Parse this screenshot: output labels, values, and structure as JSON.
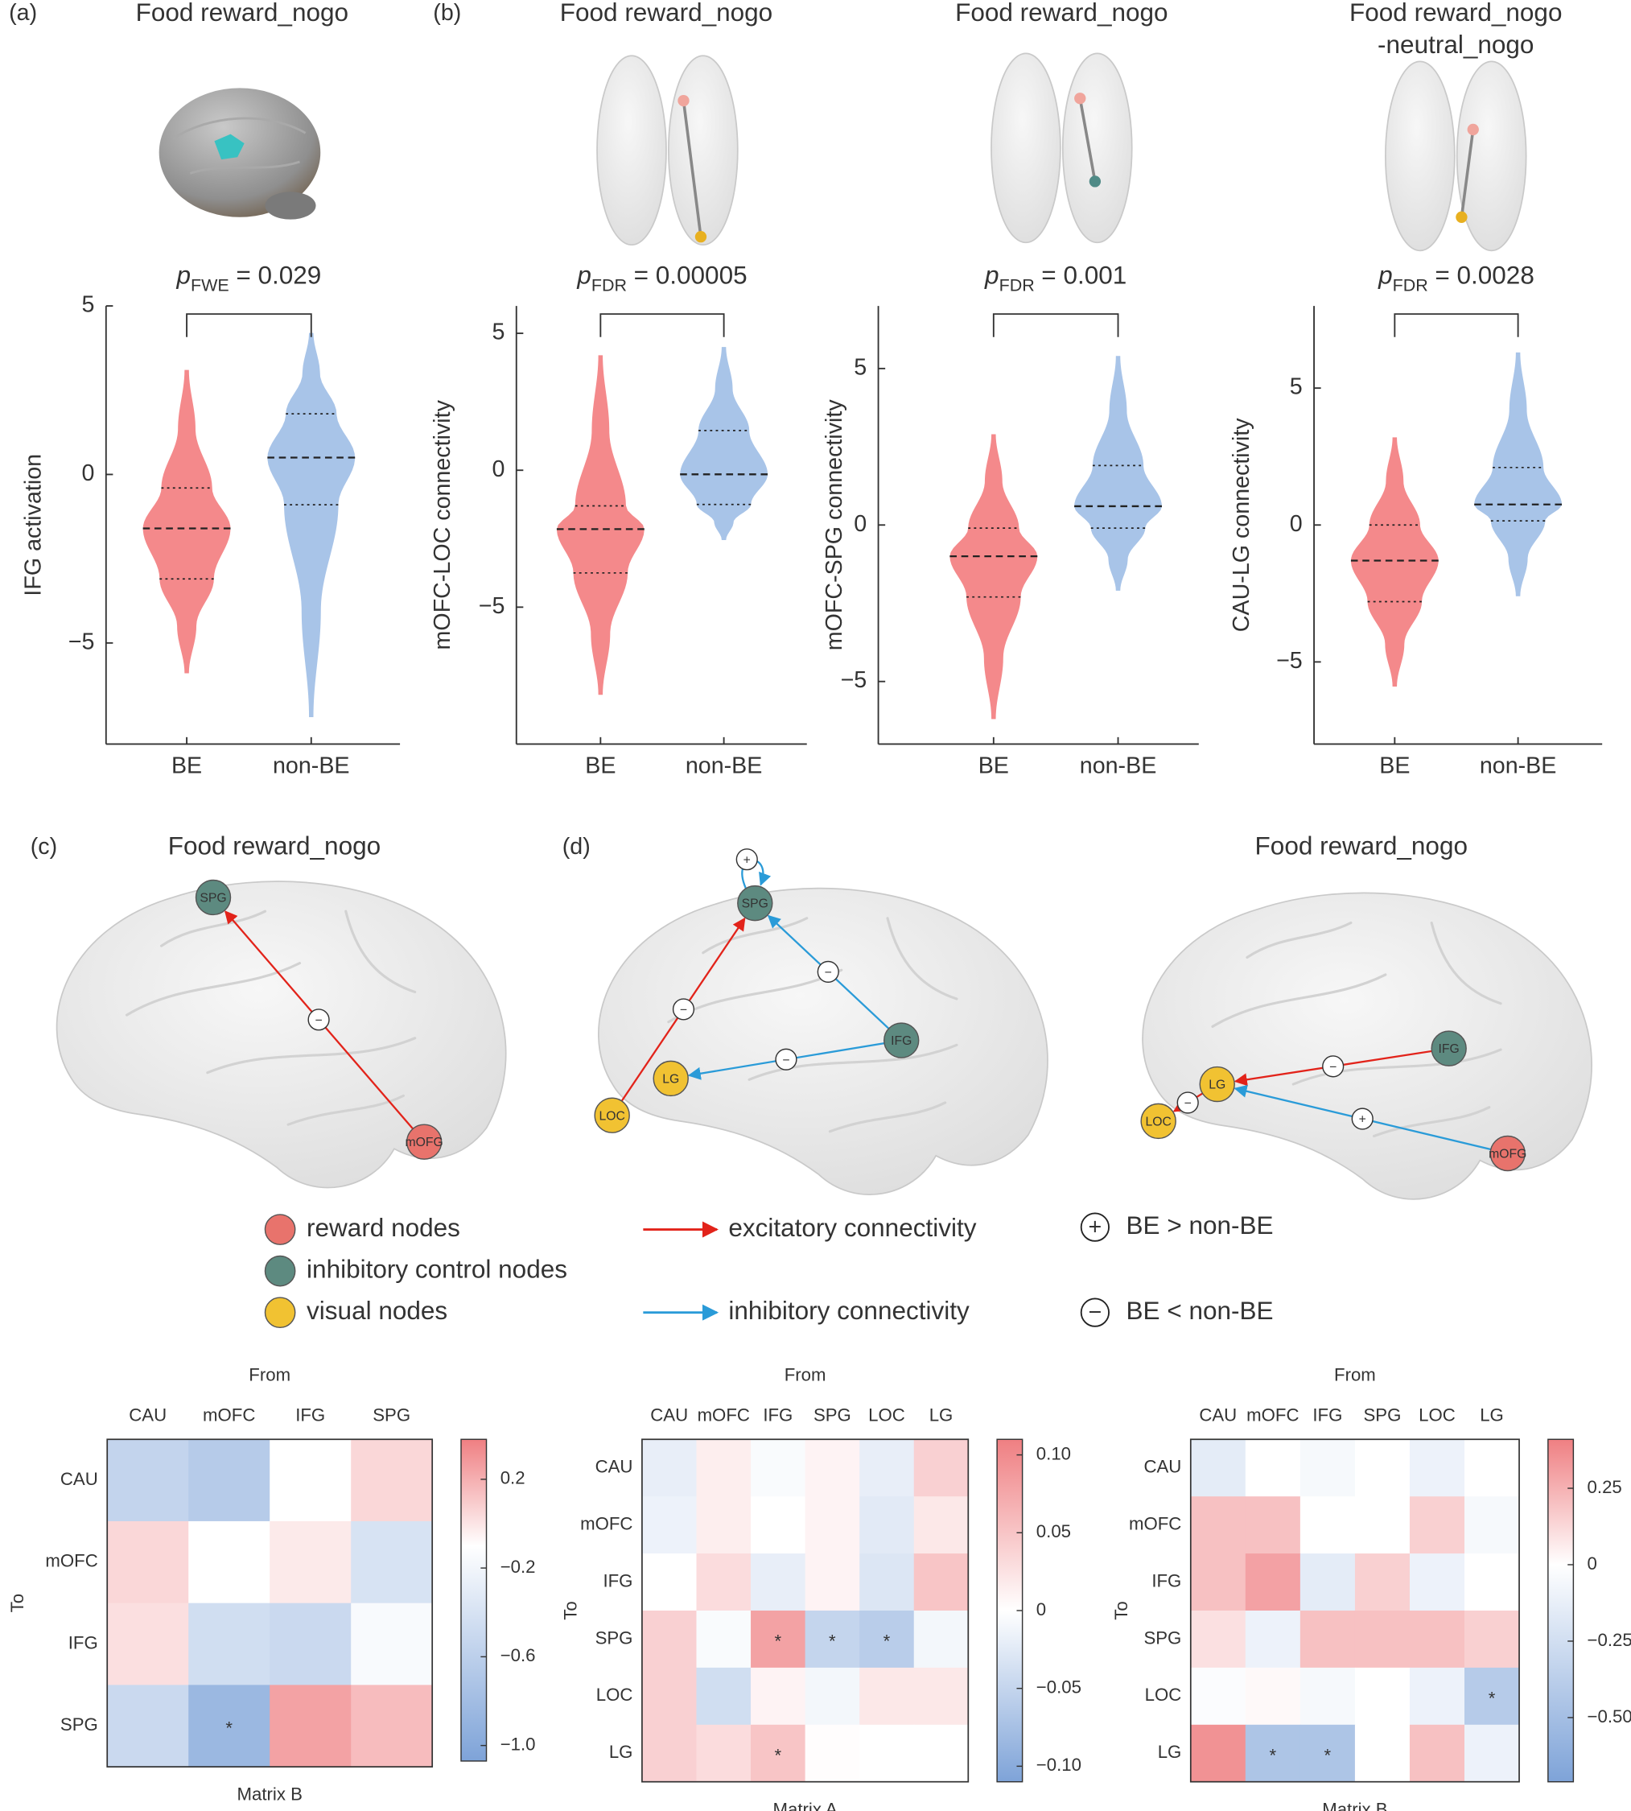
{
  "figure": {
    "panel_labels": [
      "(a)",
      "(b)",
      "(c)",
      "(d)"
    ]
  },
  "chart_data": [
    {
      "type": "violin",
      "title": [
        "Food reward_nogo"
      ],
      "ylabel": "IFG activation",
      "categories": [
        "BE",
        "non-BE"
      ],
      "colors": [
        "#f4898b",
        "#a8c4e8"
      ],
      "stats": [
        {
          "min": -5.9,
          "q1": -3.1,
          "median": -1.6,
          "q3": -0.4,
          "max": 3.1
        },
        {
          "min": -7.2,
          "q1": -0.9,
          "median": 0.5,
          "q3": 1.8,
          "max": 4.2
        }
      ],
      "ylim": [
        -8,
        5
      ],
      "yticks": [
        5,
        0,
        {
          "value": -5,
          "label": "−5"
        }
      ],
      "p_symbol": "p",
      "p_subscript": "FWE",
      "p_text": "= 0.029"
    },
    {
      "type": "violin",
      "title": [
        "Food reward_nogo"
      ],
      "ylabel": "mOFC-LOC connectivity",
      "categories": [
        "BE",
        "non-BE"
      ],
      "colors": [
        "#f4898b",
        "#a8c4e8"
      ],
      "stats": [
        {
          "min": -8.2,
          "q1": -3.75,
          "median": -2.15,
          "q3": -1.3,
          "max": 4.2
        },
        {
          "min": -2.55,
          "q1": -1.25,
          "median": -0.15,
          "q3": 1.45,
          "max": 4.5
        }
      ],
      "ylim": [
        -10,
        6
      ],
      "yticks": [
        5,
        0,
        {
          "value": -5,
          "label": "−5"
        }
      ],
      "p_symbol": "p",
      "p_subscript": "FDR",
      "p_text": "= 0.00005"
    },
    {
      "type": "violin",
      "title": [
        "Food reward_nogo"
      ],
      "ylabel": "mOFC-SPG connectivity",
      "categories": [
        "BE",
        "non-BE"
      ],
      "colors": [
        "#f4898b",
        "#a8c4e8"
      ],
      "stats": [
        {
          "min": -6.2,
          "q1": -2.3,
          "median": -1.0,
          "q3": -0.1,
          "max": 2.9
        },
        {
          "min": -2.1,
          "q1": -0.1,
          "median": 0.6,
          "q3": 1.9,
          "max": 5.4
        }
      ],
      "ylim": [
        -7,
        7
      ],
      "yticks": [
        5,
        0,
        {
          "value": -5,
          "label": "−5"
        }
      ],
      "p_symbol": "p",
      "p_subscript": "FDR",
      "p_text": "= 0.001"
    },
    {
      "type": "violin",
      "title": [
        "Food reward_nogo",
        "-neutral_nogo"
      ],
      "ylabel": "CAU-LG connectivity",
      "categories": [
        "BE",
        "non-BE"
      ],
      "colors": [
        "#f4898b",
        "#a8c4e8"
      ],
      "stats": [
        {
          "min": -5.9,
          "q1": -2.8,
          "median": -1.3,
          "q3": 0.0,
          "max": 3.2
        },
        {
          "min": -2.6,
          "q1": 0.15,
          "median": 0.75,
          "q3": 2.1,
          "max": 6.3
        }
      ],
      "ylim": [
        -8,
        8
      ],
      "yticks": [
        5,
        0,
        {
          "value": -5,
          "label": "−5"
        }
      ],
      "p_symbol": "p",
      "p_subscript": "FDR",
      "p_text": "= 0.0028"
    },
    {
      "type": "heatmap",
      "caption": "Matrix B",
      "x_label": "From",
      "y_label": "To",
      "x_categories": [
        "CAU",
        "mOFC",
        "IFG",
        "SPG"
      ],
      "y_categories": [
        "CAU",
        "mOFC",
        "IFG",
        "SPG"
      ],
      "values": [
        [
          -0.55,
          -0.65,
          -0.1,
          0.05
        ],
        [
          0.05,
          -0.1,
          -0.02,
          -0.4
        ],
        [
          0.02,
          -0.45,
          -0.5,
          -0.15
        ],
        [
          -0.5,
          -0.85,
          0.25,
          0.15
        ]
      ],
      "annotations": [
        {
          "row": 3,
          "col": 1,
          "text": "*"
        }
      ],
      "clim": [
        -1.07,
        0.38
      ],
      "color_center": -0.1,
      "colors": [
        "#7ea3d8",
        "#ffffff",
        "#ef7f82"
      ],
      "cticks": [
        0.2,
        {
          "value": -0.2,
          "label": "−0.2"
        },
        {
          "value": -0.6,
          "label": "−0.6"
        },
        {
          "value": -1.0,
          "label": "−1.0"
        }
      ]
    },
    {
      "type": "heatmap",
      "caption": "Matrix A",
      "x_label": "From",
      "y_label": "To",
      "x_categories": [
        "CAU",
        "mOFC",
        "IFG",
        "SPG",
        "LOC",
        "LG"
      ],
      "y_categories": [
        "CAU",
        "mOFC",
        "IFG",
        "SPG",
        "LOC",
        "LG"
      ],
      "values": [
        [
          -0.02,
          0.015,
          -0.005,
          0.01,
          -0.02,
          0.04
        ],
        [
          -0.015,
          0.015,
          0.0,
          0.01,
          -0.025,
          0.02
        ],
        [
          0.0,
          0.03,
          -0.02,
          0.01,
          -0.03,
          0.05
        ],
        [
          0.04,
          -0.005,
          0.08,
          -0.05,
          -0.06,
          -0.01
        ],
        [
          0.04,
          -0.04,
          0.01,
          -0.01,
          0.02,
          0.02
        ],
        [
          0.04,
          0.03,
          0.05,
          0.002,
          0.0,
          0.0
        ]
      ],
      "annotations": [
        {
          "row": 3,
          "col": 2,
          "text": "*"
        },
        {
          "row": 3,
          "col": 3,
          "text": "*"
        },
        {
          "row": 3,
          "col": 4,
          "text": "*"
        },
        {
          "row": 5,
          "col": 2,
          "text": "*"
        }
      ],
      "clim": [
        -0.11,
        0.11
      ],
      "color_center": 0,
      "colors": [
        "#7ea3d8",
        "#ffffff",
        "#ef7f82"
      ],
      "cticks": [
        {
          "value": 0.1,
          "label": "0.10"
        },
        0.05,
        0,
        {
          "value": -0.05,
          "label": "−0.05"
        },
        {
          "value": -0.1,
          "label": "−0.10"
        }
      ]
    },
    {
      "type": "heatmap",
      "caption": "Matrix B",
      "x_label": "From",
      "y_label": "To",
      "x_categories": [
        "CAU",
        "mOFC",
        "IFG",
        "SPG",
        "LOC",
        "LG"
      ],
      "y_categories": [
        "CAU",
        "mOFC",
        "IFG",
        "SPG",
        "LOC",
        "LG"
      ],
      "values": [
        [
          -0.15,
          0,
          -0.05,
          0,
          -0.1,
          0
        ],
        [
          0.2,
          0.2,
          0,
          0,
          0.15,
          -0.05
        ],
        [
          0.2,
          0.3,
          -0.15,
          0.15,
          -0.1,
          0
        ],
        [
          0.1,
          -0.1,
          0.2,
          0.2,
          0.2,
          0.15
        ],
        [
          -0.02,
          0.02,
          -0.05,
          0,
          -0.1,
          -0.4
        ],
        [
          0.35,
          -0.45,
          -0.45,
          0,
          0.2,
          -0.1
        ]
      ],
      "annotations": [
        {
          "row": 4,
          "col": 5,
          "text": "*"
        },
        {
          "row": 5,
          "col": 1,
          "text": "*"
        },
        {
          "row": 5,
          "col": 2,
          "text": "*"
        }
      ],
      "clim": [
        -0.71,
        0.41
      ],
      "color_center": 0,
      "colors": [
        "#7ea3d8",
        "#ffffff",
        "#ef7f82"
      ],
      "cticks": [
        0.25,
        0,
        {
          "value": -0.25,
          "label": "−0.25"
        },
        {
          "value": -0.5,
          "label": "−0.50"
        }
      ]
    }
  ],
  "networks": [
    {
      "title": "Food reward_nogo",
      "nodes": [
        {
          "label": "SPG",
          "group": 1
        },
        {
          "label": "mOFG",
          "group": 0
        }
      ],
      "edges": [
        {
          "from": 1,
          "to": 0,
          "kind": 0,
          "sign": "−"
        }
      ]
    },
    {
      "nodes": [
        {
          "label": "SPG",
          "group": 1
        },
        {
          "label": "IFG",
          "group": 1
        },
        {
          "label": "LG",
          "group": 2
        },
        {
          "label": "LOC",
          "group": 2
        }
      ],
      "edges": [
        {
          "from": 3,
          "to": 0,
          "kind": 0,
          "sign": "−"
        },
        {
          "from": 1,
          "to": 0,
          "kind": 1,
          "sign": "−"
        },
        {
          "from": 1,
          "to": 2,
          "kind": 1,
          "sign": "−"
        },
        {
          "from": 0,
          "to": 0,
          "kind": 1,
          "sign": "+"
        }
      ]
    },
    {
      "title": "Food reward_nogo",
      "nodes": [
        {
          "label": "IFG",
          "group": 1
        },
        {
          "label": "LG",
          "group": 2
        },
        {
          "label": "LOC",
          "group": 2
        },
        {
          "label": "mOFG",
          "group": 0
        }
      ],
      "edges": [
        {
          "from": 0,
          "to": 1,
          "kind": 0,
          "sign": "−"
        },
        {
          "from": 3,
          "to": 1,
          "kind": 1,
          "sign": "+"
        },
        {
          "from": 1,
          "to": 2,
          "kind": 0,
          "sign": "−"
        }
      ]
    }
  ],
  "legend": {
    "nodes": [
      {
        "label": "reward nodes",
        "color": "#e8736c"
      },
      {
        "label": "inhibitory control nodes",
        "color": "#5d8a80"
      },
      {
        "label": "visual nodes",
        "color": "#f1c232"
      }
    ],
    "edges": [
      {
        "label": "excitatory connectivity",
        "color": "#e2231a"
      },
      {
        "label": "inhibitory connectivity",
        "color": "#2a9bd8"
      }
    ],
    "signs": [
      {
        "symbol": "+",
        "label": "BE > non-BE"
      },
      {
        "symbol": "−",
        "label": "BE < non-BE"
      }
    ]
  }
}
